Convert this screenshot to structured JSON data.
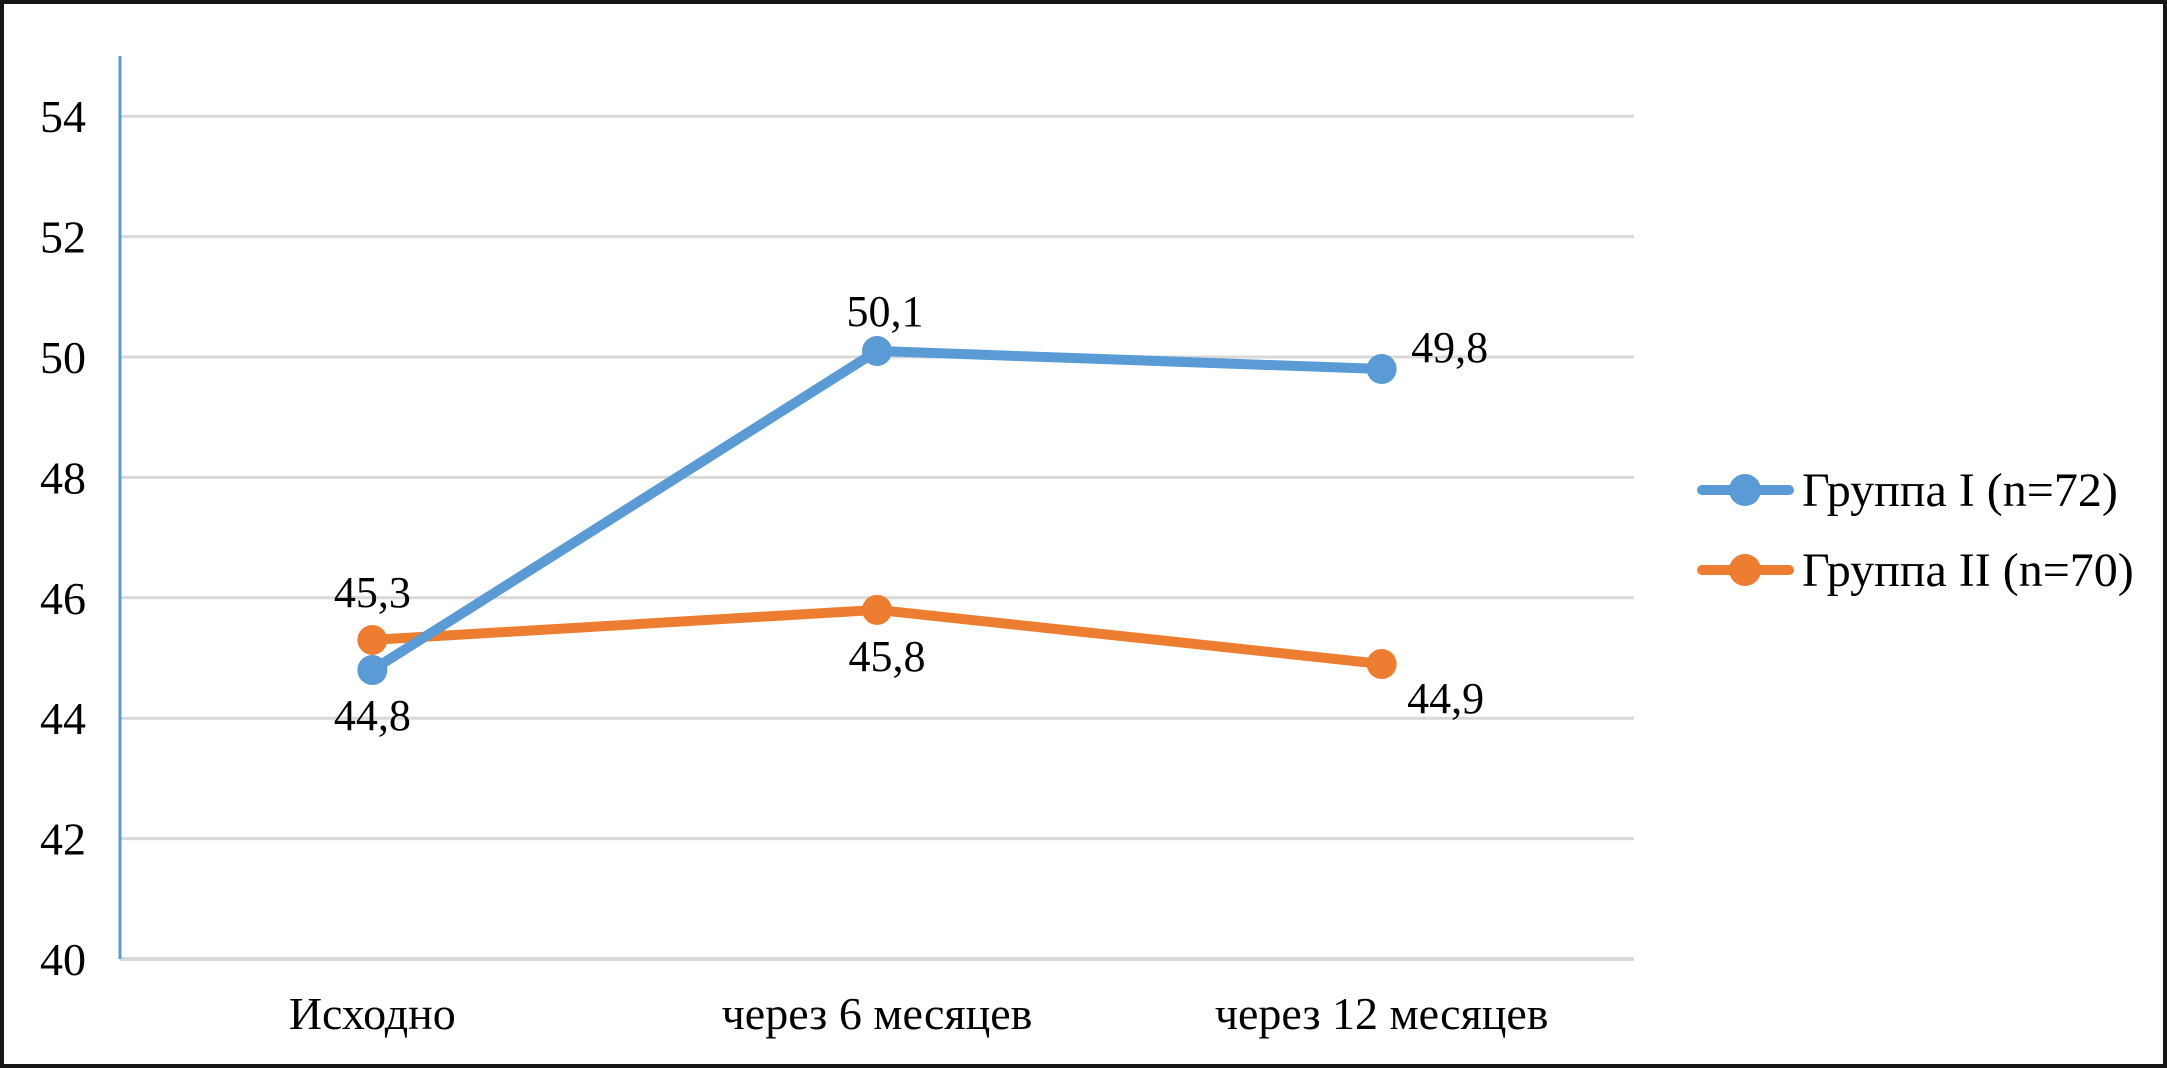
{
  "chart_data": {
    "type": "line",
    "title": "",
    "xlabel": "",
    "ylabel": "",
    "categories": [
      "Исходно",
      "через 6 месяцев",
      "через 12 месяцев"
    ],
    "series": [
      {
        "name": "Группа I (n=72)",
        "color": "#5B9BD5",
        "values": [
          44.8,
          50.1,
          49.8
        ],
        "data_labels": [
          "44,8",
          "50,1",
          "49,8"
        ],
        "label_offsets": [
          [
            0,
            60
          ],
          [
            8,
            -25
          ],
          [
            68,
            -7
          ]
        ]
      },
      {
        "name": "Группа II (n=70)",
        "color": "#ED7D31",
        "values": [
          45.3,
          45.8,
          44.9
        ],
        "data_labels": [
          "45,3",
          "45,8",
          "44,9"
        ],
        "label_offsets": [
          [
            0,
            -33
          ],
          [
            10,
            61
          ],
          [
            64,
            49
          ]
        ]
      }
    ],
    "y_axis": {
      "min": 40,
      "max": 55,
      "tick_step": 2,
      "ticks": [
        40,
        42,
        44,
        46,
        48,
        50,
        52,
        54
      ],
      "tick_labels": [
        "40",
        "42",
        "44",
        "46",
        "48",
        "50",
        "52",
        "54"
      ]
    },
    "ylim": [
      40,
      55
    ],
    "grid": true,
    "legend_position": "right",
    "colors": {
      "grid": "#D9D9D9",
      "y_axis_line": "#5B9BD5",
      "x_axis_line": "#D9D9D9",
      "text": "#000000"
    }
  }
}
